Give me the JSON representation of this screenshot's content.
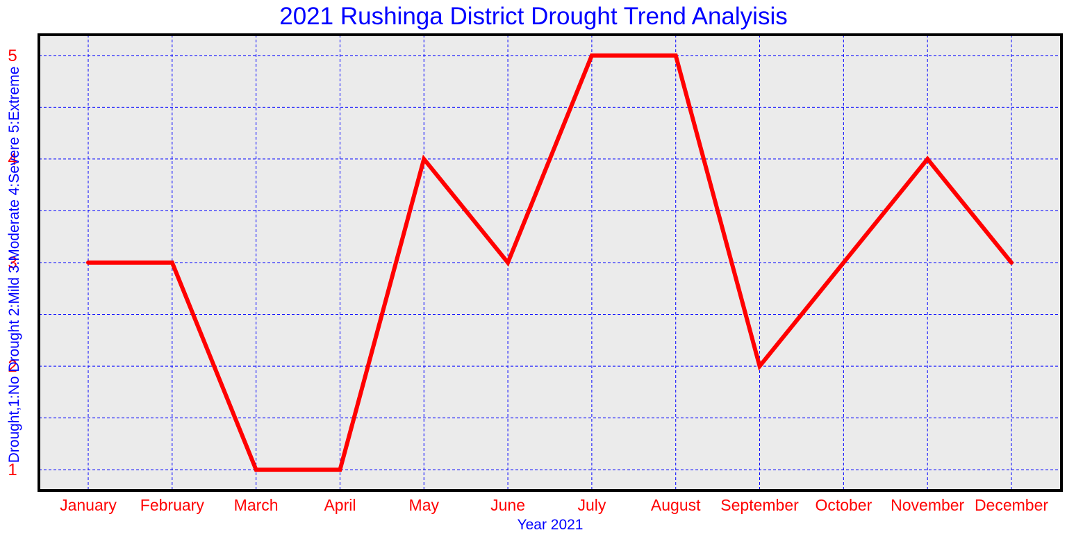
{
  "chart_data": {
    "type": "line",
    "title": "2021 Rushinga District Drought Trend Analyisis",
    "xlabel": "Year 2021",
    "ylabel": "Drought,1:No Drought 2:Mild 3:Moderate 4:Severe 5:Extreme",
    "categories": [
      "January",
      "February",
      "March",
      "April",
      "May",
      "June",
      "July",
      "August",
      "September",
      "October",
      "November",
      "December"
    ],
    "series": [
      {
        "values": [
          3,
          3,
          1,
          1,
          4,
          3,
          5,
          5,
          2,
          3,
          4,
          3
        ]
      }
    ],
    "ylim": [
      0.8,
      5.2
    ],
    "yticks": [
      1,
      2,
      3,
      4,
      5
    ],
    "grid": true,
    "colors": {
      "line": "#ff0000",
      "grid": "#0000ff",
      "plot_background": "#ebebeb",
      "tick_labels": "#ff0000",
      "axis_labels": "#0000ff",
      "frame": "#000000"
    }
  }
}
